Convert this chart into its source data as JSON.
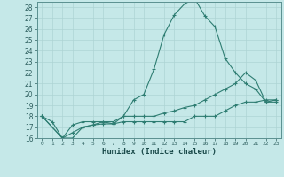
{
  "xlabel": "Humidex (Indice chaleur)",
  "ylabel": "",
  "background_color": "#c5e8e8",
  "line_color": "#2e7d72",
  "grid_color": "#aed4d4",
  "xlim": [
    -0.5,
    23.5
  ],
  "ylim": [
    16,
    28.5
  ],
  "xticks": [
    0,
    1,
    2,
    3,
    4,
    5,
    6,
    7,
    8,
    9,
    10,
    11,
    12,
    13,
    14,
    15,
    16,
    17,
    18,
    19,
    20,
    21,
    22,
    23
  ],
  "yticks": [
    16,
    17,
    18,
    19,
    20,
    21,
    22,
    23,
    24,
    25,
    26,
    27,
    28
  ],
  "line1_x": [
    0,
    1,
    2,
    3,
    4,
    5,
    6,
    7,
    8,
    9,
    10,
    11,
    12,
    13,
    14,
    15,
    16,
    17,
    18,
    19,
    20,
    21,
    22,
    23
  ],
  "line1_y": [
    18.0,
    17.5,
    16.0,
    16.0,
    17.0,
    17.2,
    17.5,
    17.3,
    18.0,
    19.5,
    20.0,
    22.3,
    25.5,
    27.3,
    28.3,
    28.8,
    27.2,
    26.2,
    23.3,
    22.0,
    21.0,
    20.5,
    19.3,
    19.3
  ],
  "line2_x": [
    0,
    2,
    3,
    4,
    5,
    6,
    7,
    8,
    9,
    10,
    11,
    12,
    13,
    14,
    15,
    16,
    17,
    18,
    19,
    20,
    21,
    22,
    23
  ],
  "line2_y": [
    18.0,
    16.0,
    17.2,
    17.5,
    17.5,
    17.5,
    17.5,
    18.0,
    18.0,
    18.0,
    18.0,
    18.3,
    18.5,
    18.8,
    19.0,
    19.5,
    20.0,
    20.5,
    21.0,
    22.0,
    21.3,
    19.3,
    19.5
  ],
  "line3_x": [
    0,
    2,
    3,
    4,
    5,
    6,
    7,
    8,
    9,
    10,
    11,
    12,
    13,
    14,
    15,
    16,
    17,
    18,
    19,
    20,
    21,
    22,
    23
  ],
  "line3_y": [
    18.0,
    16.0,
    16.5,
    17.0,
    17.2,
    17.3,
    17.3,
    17.5,
    17.5,
    17.5,
    17.5,
    17.5,
    17.5,
    17.5,
    18.0,
    18.0,
    18.0,
    18.5,
    19.0,
    19.3,
    19.3,
    19.5,
    19.5
  ]
}
